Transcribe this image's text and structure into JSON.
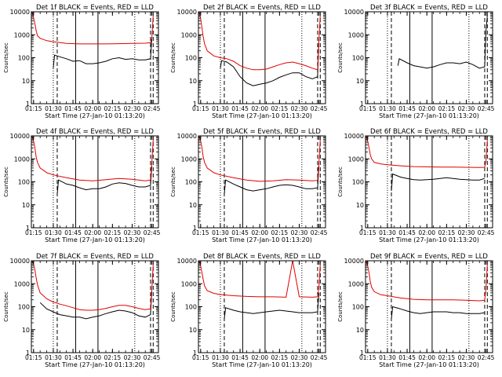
{
  "figure": {
    "xlabel": "Start Time (27-Jan-10 01:13:20)",
    "ylabel": "Counts/sec",
    "xticks": [
      "01:15",
      "01:30",
      "01:45",
      "02:00",
      "02:15",
      "02:30",
      "02:45"
    ],
    "yticks": [
      "1",
      "10",
      "100",
      "1000",
      "10000"
    ],
    "colors": {
      "events": "#000000",
      "lld": "#e00000"
    }
  },
  "chart_data": [
    {
      "type": "line",
      "title": "Det 1f BLACK = Events, RED = LLD",
      "yscale": "log",
      "ylim": [
        1,
        10000
      ],
      "xlim": [
        "01:13:20",
        "02:50:00"
      ],
      "series": [
        {
          "name": "Events",
          "color": "#000000",
          "x": [
            "01:30",
            "01:31",
            "01:35",
            "01:40",
            "01:45",
            "01:50",
            "01:55",
            "02:00",
            "02:05",
            "02:10",
            "02:15",
            "02:20",
            "02:25",
            "02:30",
            "02:35",
            "02:40",
            "02:44",
            "02:45"
          ],
          "values": [
            35,
            130,
            110,
            90,
            70,
            75,
            55,
            55,
            60,
            70,
            90,
            100,
            85,
            90,
            80,
            80,
            90,
            700
          ]
        },
        {
          "name": "LLD",
          "color": "#e00000",
          "x": [
            "01:13:20",
            "01:14",
            "01:15",
            "01:16",
            "01:17",
            "01:18",
            "01:20",
            "01:25",
            "01:30",
            "01:40",
            "01:50",
            "02:00",
            "02:10",
            "02:20",
            "02:30",
            "02:40",
            "02:44",
            "02:45",
            "02:46"
          ],
          "values": [
            10000,
            9000,
            5500,
            3000,
            1500,
            900,
            700,
            550,
            500,
            420,
            400,
            400,
            400,
            410,
            420,
            430,
            450,
            700,
            7000
          ]
        }
      ]
    },
    {
      "type": "line",
      "title": "Det 2f BLACK = Events, RED = LLD",
      "yscale": "log",
      "ylim": [
        1,
        10000
      ],
      "xlim": [
        "01:13:20",
        "02:50:00"
      ],
      "series": [
        {
          "name": "Events",
          "color": "#000000",
          "x": [
            "01:30",
            "01:31",
            "01:35",
            "01:40",
            "01:45",
            "01:50",
            "01:55",
            "02:00",
            "02:05",
            "02:10",
            "02:15",
            "02:20",
            "02:25",
            "02:30",
            "02:35",
            "02:40",
            "02:44",
            "02:45"
          ],
          "values": [
            35,
            75,
            65,
            40,
            15,
            8,
            6,
            7,
            8,
            10,
            14,
            18,
            22,
            22,
            15,
            12,
            15,
            600
          ]
        },
        {
          "name": "LLD",
          "color": "#e00000",
          "x": [
            "01:13:20",
            "01:14",
            "01:15",
            "01:16",
            "01:17",
            "01:18",
            "01:20",
            "01:25",
            "01:30",
            "01:35",
            "01:40",
            "01:45",
            "01:50",
            "01:55",
            "02:00",
            "02:05",
            "02:10",
            "02:15",
            "02:20",
            "02:25",
            "02:30",
            "02:35",
            "02:40",
            "02:44",
            "02:45",
            "02:46"
          ],
          "values": [
            10000,
            9000,
            5000,
            2000,
            800,
            400,
            200,
            120,
            100,
            90,
            70,
            45,
            35,
            30,
            30,
            32,
            40,
            50,
            60,
            65,
            55,
            45,
            35,
            30,
            600,
            7000
          ]
        }
      ]
    },
    {
      "type": "line",
      "title": "Det 3f BLACK = Events, RED = LLD",
      "yscale": "log",
      "ylim": [
        1,
        10000
      ],
      "xlim": [
        "01:13:20",
        "02:50:00"
      ],
      "series": [
        {
          "name": "Events",
          "color": "#000000",
          "x": [
            "01:38",
            "01:39",
            "01:45",
            "01:50",
            "01:55",
            "02:00",
            "02:05",
            "02:10",
            "02:15",
            "02:20",
            "02:25",
            "02:30",
            "02:35",
            "02:40",
            "02:44",
            "02:45",
            "02:46"
          ],
          "values": [
            45,
            90,
            60,
            45,
            40,
            35,
            40,
            50,
            60,
            60,
            55,
            65,
            50,
            35,
            40,
            1500,
            7000
          ]
        }
      ]
    },
    {
      "type": "line",
      "title": "Det 4f BLACK = Events, RED = LLD",
      "yscale": "log",
      "ylim": [
        1,
        10000
      ],
      "xlim": [
        "01:13:20",
        "02:50:00"
      ],
      "series": [
        {
          "name": "Events",
          "color": "#000000",
          "x": [
            "01:33",
            "01:34",
            "01:40",
            "01:45",
            "01:50",
            "01:55",
            "02:00",
            "02:05",
            "02:10",
            "02:15",
            "02:20",
            "02:25",
            "02:30",
            "02:35",
            "02:40",
            "02:44",
            "02:45"
          ],
          "values": [
            30,
            120,
            80,
            70,
            55,
            45,
            50,
            50,
            60,
            80,
            90,
            85,
            70,
            60,
            60,
            70,
            500
          ]
        },
        {
          "name": "LLD",
          "color": "#e00000",
          "x": [
            "01:13:20",
            "01:14",
            "01:15",
            "01:16",
            "01:17",
            "01:18",
            "01:20",
            "01:25",
            "01:30",
            "01:40",
            "01:50",
            "02:00",
            "02:10",
            "02:20",
            "02:30",
            "02:40",
            "02:44",
            "02:45",
            "02:46"
          ],
          "values": [
            10000,
            9000,
            6000,
            3000,
            1200,
            700,
            400,
            250,
            200,
            150,
            120,
            110,
            125,
            140,
            130,
            110,
            120,
            700,
            7000
          ]
        }
      ]
    },
    {
      "type": "line",
      "title": "Det 5f BLACK = Events, RED = LLD",
      "yscale": "log",
      "ylim": [
        1,
        10000
      ],
      "xlim": [
        "01:13:20",
        "02:50:00"
      ],
      "series": [
        {
          "name": "Events",
          "color": "#000000",
          "x": [
            "01:33",
            "01:34",
            "01:40",
            "01:45",
            "01:50",
            "01:55",
            "02:00",
            "02:05",
            "02:10",
            "02:15",
            "02:20",
            "02:25",
            "02:30",
            "02:35",
            "02:40",
            "02:44",
            "02:45"
          ],
          "values": [
            30,
            120,
            80,
            60,
            45,
            40,
            45,
            50,
            60,
            70,
            75,
            70,
            60,
            50,
            50,
            55,
            500
          ]
        },
        {
          "name": "LLD",
          "color": "#e00000",
          "x": [
            "01:13:20",
            "01:14",
            "01:15",
            "01:16",
            "01:17",
            "01:18",
            "01:20",
            "01:25",
            "01:30",
            "01:40",
            "01:50",
            "02:00",
            "02:10",
            "02:20",
            "02:30",
            "02:40",
            "02:44",
            "02:45",
            "02:46"
          ],
          "values": [
            10000,
            9000,
            6000,
            3000,
            1200,
            700,
            400,
            250,
            200,
            150,
            120,
            105,
            110,
            125,
            120,
            110,
            115,
            700,
            7000
          ]
        }
      ]
    },
    {
      "type": "line",
      "title": "Det 6f BLACK = Events, RED = LLD",
      "yscale": "log",
      "ylim": [
        1,
        10000
      ],
      "xlim": [
        "01:13:20",
        "02:50:00"
      ],
      "series": [
        {
          "name": "Events",
          "color": "#000000",
          "x": [
            "01:33",
            "01:34",
            "01:40",
            "01:45",
            "01:50",
            "01:55",
            "02:00",
            "02:05",
            "02:10",
            "02:15",
            "02:20",
            "02:25",
            "02:30",
            "02:35",
            "02:40",
            "02:44"
          ],
          "values": [
            40,
            220,
            160,
            140,
            125,
            120,
            125,
            130,
            140,
            150,
            140,
            130,
            125,
            120,
            120,
            140
          ]
        },
        {
          "name": "LLD",
          "color": "#e00000",
          "x": [
            "01:13:20",
            "01:14",
            "01:15",
            "01:16",
            "01:17",
            "01:18",
            "01:20",
            "01:25",
            "01:30",
            "01:40",
            "01:50",
            "02:00",
            "02:10",
            "02:20",
            "02:30",
            "02:40",
            "02:44",
            "02:45",
            "02:46"
          ],
          "values": [
            10000,
            9000,
            6000,
            3000,
            1500,
            1000,
            700,
            600,
            550,
            500,
            460,
            450,
            440,
            440,
            430,
            420,
            430,
            800,
            7000
          ]
        }
      ]
    },
    {
      "type": "line",
      "title": "Det 7f BLACK = Events, RED = LLD",
      "yscale": "log",
      "ylim": [
        1,
        10000
      ],
      "xlim": [
        "01:13:20",
        "02:50:00"
      ],
      "series": [
        {
          "name": "Events",
          "color": "#000000",
          "x": [
            "01:20",
            "01:25",
            "01:30",
            "01:35",
            "01:40",
            "01:45",
            "01:50",
            "01:55",
            "02:00",
            "02:05",
            "02:10",
            "02:15",
            "02:20",
            "02:25",
            "02:30",
            "02:35",
            "02:40",
            "02:44",
            "02:45"
          ],
          "values": [
            150,
            80,
            60,
            45,
            40,
            35,
            35,
            30,
            35,
            40,
            50,
            60,
            70,
            65,
            55,
            40,
            35,
            45,
            500
          ]
        },
        {
          "name": "LLD",
          "color": "#e00000",
          "x": [
            "01:13:20",
            "01:14",
            "01:15",
            "01:16",
            "01:17",
            "01:18",
            "01:20",
            "01:25",
            "01:30",
            "01:35",
            "01:40",
            "01:45",
            "01:50",
            "01:55",
            "02:00",
            "02:05",
            "02:10",
            "02:15",
            "02:20",
            "02:25",
            "02:30",
            "02:35",
            "02:40",
            "02:44",
            "02:45",
            "02:46"
          ],
          "values": [
            10000,
            9500,
            7000,
            4000,
            1800,
            900,
            400,
            220,
            160,
            130,
            110,
            90,
            75,
            70,
            70,
            75,
            85,
            100,
            115,
            115,
            100,
            85,
            75,
            80,
            600,
            7000
          ]
        }
      ]
    },
    {
      "type": "line",
      "title": "Det 8f BLACK = Events, RED = LLD",
      "yscale": "log",
      "ylim": [
        1,
        10000
      ],
      "xlim": [
        "01:13:20",
        "02:50:00"
      ],
      "series": [
        {
          "name": "Events",
          "color": "#000000",
          "x": [
            "01:33",
            "01:34",
            "01:40",
            "01:45",
            "01:50",
            "01:55",
            "02:00",
            "02:05",
            "02:10",
            "02:15",
            "02:20",
            "02:25",
            "02:30",
            "02:35",
            "02:40",
            "02:44",
            "02:45"
          ],
          "values": [
            30,
            90,
            70,
            60,
            55,
            50,
            55,
            60,
            65,
            70,
            65,
            60,
            55,
            55,
            55,
            60,
            400
          ]
        },
        {
          "name": "LLD",
          "color": "#e00000",
          "x": [
            "01:13:20",
            "01:14",
            "01:15",
            "01:16",
            "01:17",
            "01:18",
            "01:20",
            "01:25",
            "01:30",
            "01:40",
            "01:50",
            "02:00",
            "02:10",
            "02:20",
            "02:25",
            "02:30",
            "02:40",
            "02:44",
            "02:45",
            "02:46"
          ],
          "values": [
            10000,
            9000,
            6000,
            3000,
            1500,
            800,
            500,
            380,
            340,
            300,
            280,
            270,
            270,
            260,
            10000,
            270,
            260,
            270,
            700,
            7000
          ]
        }
      ]
    },
    {
      "type": "line",
      "title": "Det 9f BLACK = Events, RED = LLD",
      "yscale": "log",
      "ylim": [
        1,
        10000
      ],
      "xlim": [
        "01:13:20",
        "02:50:00"
      ],
      "series": [
        {
          "name": "Events",
          "color": "#000000",
          "x": [
            "01:33",
            "01:34",
            "01:40",
            "01:45",
            "01:50",
            "01:55",
            "02:00",
            "02:05",
            "02:10",
            "02:15",
            "02:20",
            "02:25",
            "02:30",
            "02:35",
            "02:40",
            "02:44"
          ],
          "values": [
            30,
            100,
            80,
            65,
            55,
            50,
            55,
            60,
            60,
            60,
            55,
            55,
            50,
            50,
            50,
            55
          ]
        },
        {
          "name": "LLD",
          "color": "#e00000",
          "x": [
            "01:13:20",
            "01:14",
            "01:15",
            "01:16",
            "01:17",
            "01:18",
            "01:20",
            "01:25",
            "01:30",
            "01:40",
            "01:50",
            "02:00",
            "02:10",
            "02:20",
            "02:30",
            "02:40",
            "02:44",
            "02:45",
            "02:46"
          ],
          "values": [
            10000,
            9000,
            6000,
            3000,
            1200,
            700,
            450,
            330,
            300,
            240,
            210,
            200,
            200,
            200,
            190,
            180,
            190,
            600,
            7000
          ]
        }
      ]
    }
  ]
}
